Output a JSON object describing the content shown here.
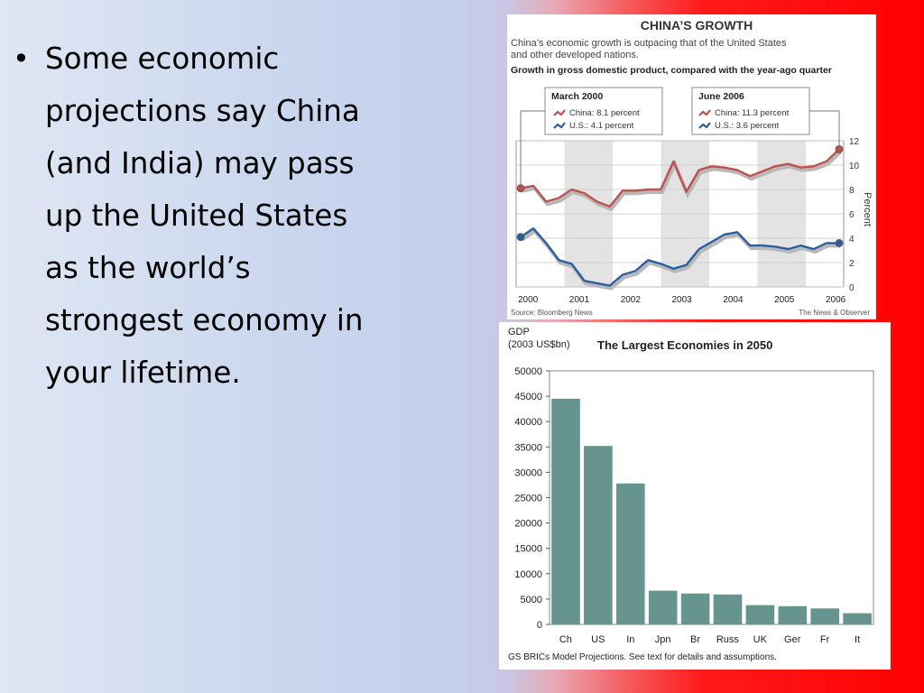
{
  "slide": {
    "bullet_text": "Some economic projections say China (and India) may pass up the United States as the world’s strongest economy in your lifetime.",
    "bullet_lines": [
      "Some economic",
      "projections say China",
      "(and India) may pass",
      "up the United States",
      "as the world’s",
      "strongest economy in",
      "your lifetime."
    ]
  },
  "colors": {
    "china_line": "#c0504d",
    "us_line": "#2a5f9e",
    "bar_fill": "#66948f",
    "shade_band": "#e3e3e3"
  },
  "chart_data": [
    {
      "type": "line",
      "title": "CHINA’S GROWTH",
      "subtitle_lines": [
        "China’s economic growth is outpacing that of the United States",
        "and other developed nations."
      ],
      "subtitle": "China’s economic growth is outpacing that of the United States and other developed nations.",
      "description": "Growth in gross domestic product, compared with the year-ago quarter",
      "ylabel": "Percent",
      "ylim": [
        0,
        12
      ],
      "yticks": [
        0,
        2,
        4,
        6,
        8,
        10,
        12
      ],
      "xticks": [
        "2000",
        "2001",
        "2002",
        "2003",
        "2004",
        "2005",
        "2006"
      ],
      "grid": true,
      "callouts": [
        {
          "title": "March 2000",
          "china": "China: 8.1 percent",
          "us": "U.S.: 4.1 percent"
        },
        {
          "title": "June 2006",
          "china": "China: 11.3 percent",
          "us": "U.S.: 3.6 percent"
        }
      ],
      "x": [
        "2000Q1",
        "2000Q2",
        "2000Q3",
        "2000Q4",
        "2001Q1",
        "2001Q2",
        "2001Q3",
        "2001Q4",
        "2002Q1",
        "2002Q2",
        "2002Q3",
        "2002Q4",
        "2003Q1",
        "2003Q2",
        "2003Q3",
        "2003Q4",
        "2004Q1",
        "2004Q2",
        "2004Q3",
        "2004Q4",
        "2005Q1",
        "2005Q2",
        "2005Q3",
        "2005Q4",
        "2006Q1",
        "2006Q2"
      ],
      "series": [
        {
          "name": "China",
          "values": [
            8.1,
            8.3,
            7.0,
            7.3,
            8.0,
            7.7,
            7.0,
            6.6,
            7.9,
            7.9,
            8.0,
            8.0,
            10.3,
            7.8,
            9.6,
            9.9,
            9.8,
            9.6,
            9.1,
            9.5,
            9.9,
            10.1,
            9.8,
            9.9,
            10.3,
            11.3
          ]
        },
        {
          "name": "U.S.",
          "values": [
            4.1,
            4.8,
            3.6,
            2.2,
            1.9,
            0.5,
            0.3,
            0.1,
            1.0,
            1.3,
            2.2,
            1.9,
            1.5,
            1.8,
            3.1,
            3.7,
            4.3,
            4.5,
            3.4,
            3.4,
            3.3,
            3.1,
            3.4,
            3.1,
            3.6,
            3.6
          ]
        }
      ],
      "source": "Source: Bloomberg News",
      "credit": "The News & Observer"
    },
    {
      "type": "bar",
      "title": "The Largest Economies in 2050",
      "ylabel_lines": [
        "GDP",
        "(2003 US$bn)"
      ],
      "categories": [
        "Ch",
        "US",
        "In",
        "Jpn",
        "Br",
        "Russ",
        "UK",
        "Ger",
        "Fr",
        "It"
      ],
      "values": [
        44500,
        35200,
        27800,
        6650,
        6100,
        5900,
        3800,
        3600,
        3150,
        2200
      ],
      "ylim": [
        0,
        50000
      ],
      "yticks": [
        0,
        5000,
        10000,
        15000,
        20000,
        25000,
        30000,
        35000,
        40000,
        45000,
        50000
      ],
      "footnote": "GS BRICs Model Projections. See text for details and assumptions."
    }
  ]
}
